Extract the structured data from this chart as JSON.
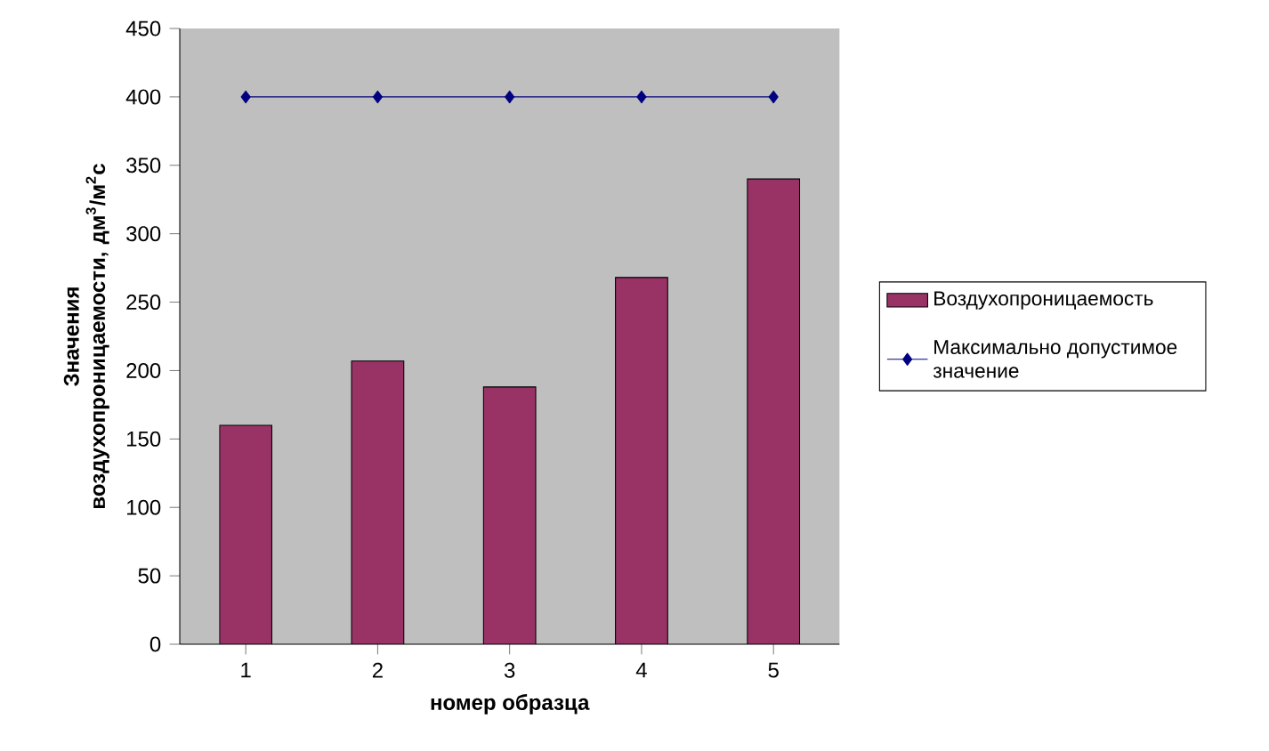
{
  "chart_data": {
    "type": "bar",
    "xlabel": "номер образца",
    "ylabel": "Значения воздухопроницаемости, дм$^{3}$/м$^{2}$с",
    "categories": [
      "1",
      "2",
      "3",
      "4",
      "5"
    ],
    "series": [
      {
        "name": "Воздухопроницаемость",
        "color": "#993366",
        "values": [
          160,
          207,
          188,
          268,
          340
        ]
      },
      {
        "name": "Максимально допустимое значение",
        "type": "line",
        "color": "#000080",
        "marker": "diamond",
        "values": [
          400,
          400,
          400,
          400,
          400
        ]
      }
    ],
    "ylim": [
      0,
      450
    ],
    "yticks": [
      0,
      50,
      100,
      150,
      200,
      250,
      300,
      350,
      400,
      450
    ],
    "grid": false,
    "legend": "right"
  }
}
